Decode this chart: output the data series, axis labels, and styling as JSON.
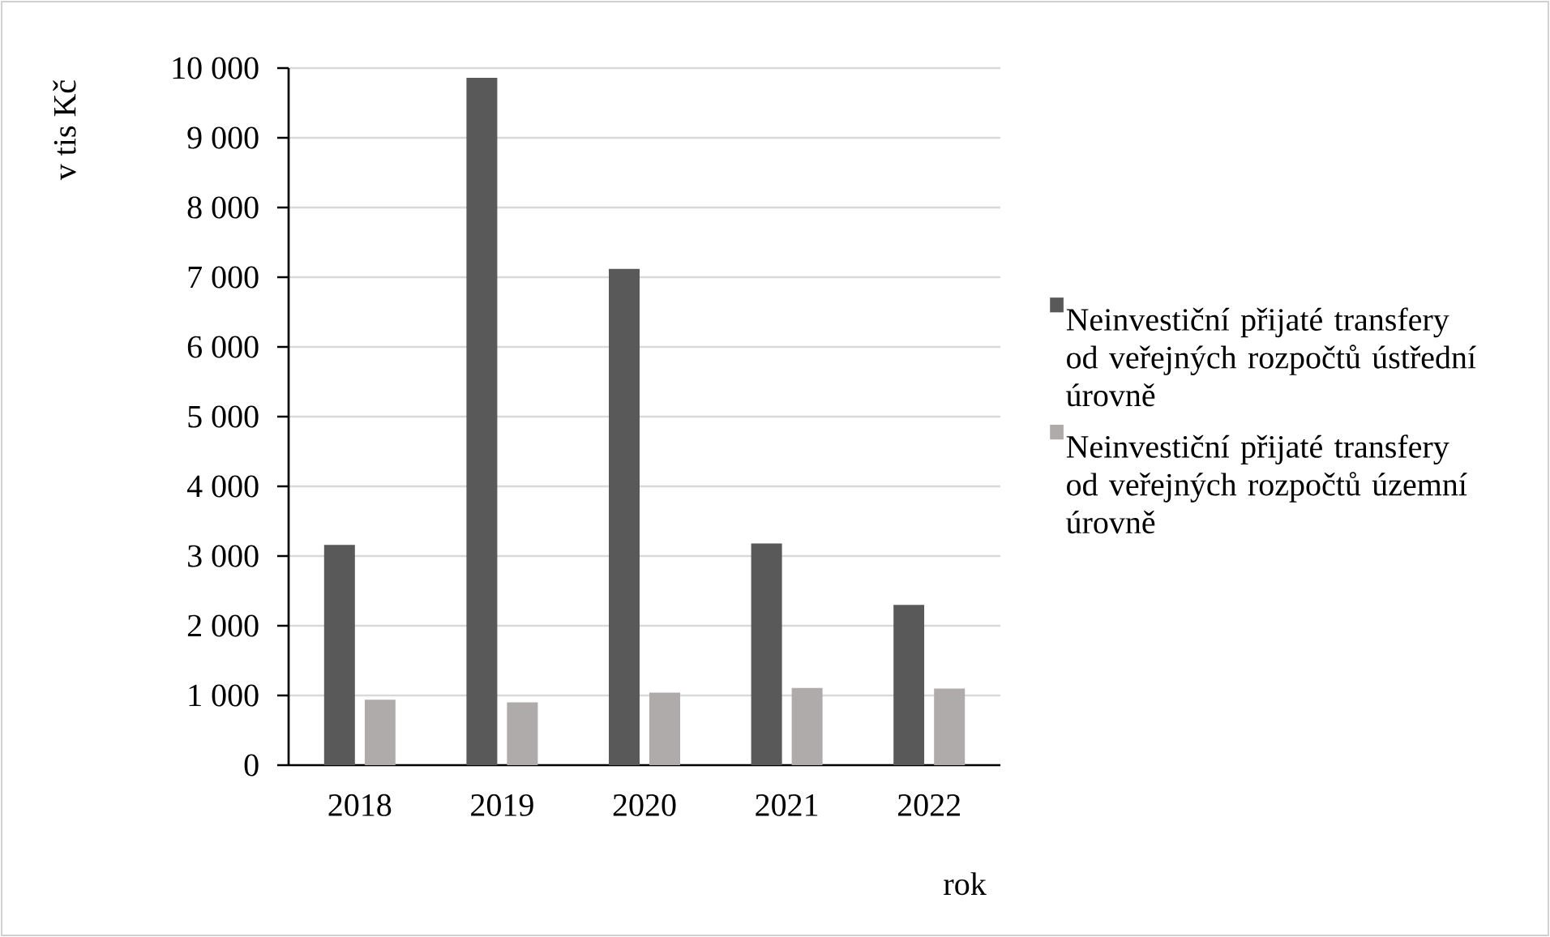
{
  "chart_data": {
    "type": "bar",
    "xlabel": "rok",
    "ylabel": "v tis Kč",
    "categories": [
      "2018",
      "2019",
      "2020",
      "2021",
      "2022"
    ],
    "series": [
      {
        "name": "Neinvestiční přijaté transfery od veřejných rozpočtů ústřední úrovně",
        "color": "#595959",
        "values": [
          3160,
          9860,
          7120,
          3180,
          2300
        ]
      },
      {
        "name": "Neinvestiční přijaté transfery od veřejných rozpočtů územní úrovně",
        "color": "#afabab",
        "values": [
          940,
          900,
          1040,
          1110,
          1100
        ]
      }
    ],
    "ylim": [
      0,
      10000
    ],
    "yticks": [
      0,
      {
        "value": 1000,
        "label": "1 000"
      },
      {
        "value": 2000,
        "label": "2 000"
      },
      {
        "value": 3000,
        "label": "3 000"
      },
      {
        "value": 4000,
        "label": "4 000"
      },
      {
        "value": 5000,
        "label": "5 000"
      },
      {
        "value": 6000,
        "label": "6 000"
      },
      {
        "value": 7000,
        "label": "7 000"
      },
      {
        "value": 8000,
        "label": "8 000"
      },
      {
        "value": 9000,
        "label": "9 000"
      },
      {
        "value": 10000,
        "label": "10 000"
      }
    ],
    "grid": "y",
    "legend": "right"
  }
}
